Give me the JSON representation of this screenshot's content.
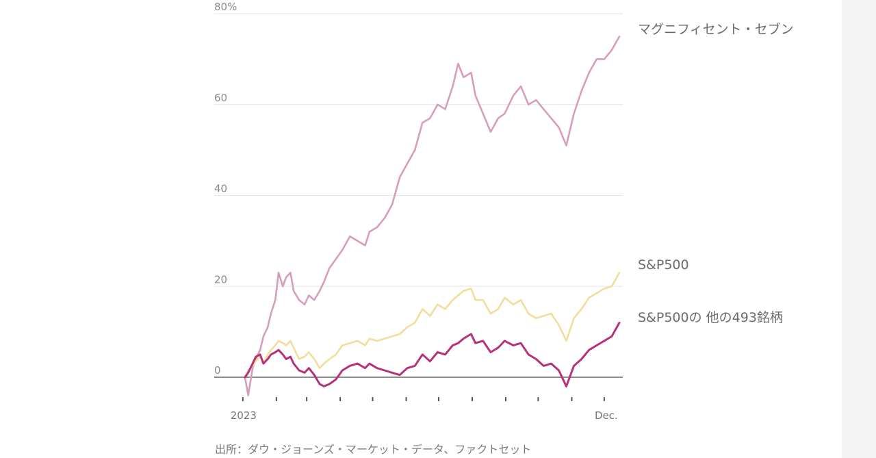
{
  "source": "出所：ダウ・ジョーンズ・マーケット・データ、ファクトセット",
  "chart_data": {
    "type": "line",
    "y_unit": "%",
    "y_ticks": [
      0,
      20,
      40,
      60,
      80
    ],
    "y_tick_labels": [
      "0",
      "20",
      "40",
      "60",
      "80%"
    ],
    "ylim": [
      -4,
      81
    ],
    "x_range": [
      "2023-01-03",
      "2023-12-15"
    ],
    "x_tick_dates": [
      "2023-01-01",
      "2023-02-01",
      "2023-03-01",
      "2023-04-01",
      "2023-05-01",
      "2023-06-01",
      "2023-07-01",
      "2023-08-01",
      "2023-09-01",
      "2023-10-01",
      "2023-11-01",
      "2023-12-01"
    ],
    "x_labels": [
      {
        "date": "2023-01-01",
        "text": "2023"
      },
      {
        "date": "2023-12-01",
        "text": "Dec."
      }
    ],
    "grid": true,
    "legend": "right, inline labels at line ends",
    "series": [
      {
        "name": "マグニフィセント・セブン",
        "color": "#d99dbc",
        "points": [
          [
            "2023-01-03",
            0
          ],
          [
            "2023-01-06",
            -4
          ],
          [
            "2023-01-10",
            2
          ],
          [
            "2023-01-13",
            4
          ],
          [
            "2023-01-17",
            6
          ],
          [
            "2023-01-20",
            9
          ],
          [
            "2023-01-24",
            11
          ],
          [
            "2023-01-27",
            14
          ],
          [
            "2023-01-31",
            17
          ],
          [
            "2023-02-03",
            23
          ],
          [
            "2023-02-07",
            20
          ],
          [
            "2023-02-10",
            22
          ],
          [
            "2023-02-14",
            23
          ],
          [
            "2023-02-17",
            19
          ],
          [
            "2023-02-22",
            17
          ],
          [
            "2023-02-27",
            16
          ],
          [
            "2023-03-03",
            18
          ],
          [
            "2023-03-08",
            17
          ],
          [
            "2023-03-13",
            19
          ],
          [
            "2023-03-17",
            21
          ],
          [
            "2023-03-22",
            24
          ],
          [
            "2023-03-28",
            26
          ],
          [
            "2023-04-03",
            28
          ],
          [
            "2023-04-10",
            31
          ],
          [
            "2023-04-17",
            30
          ],
          [
            "2023-04-24",
            29
          ],
          [
            "2023-04-28",
            32
          ],
          [
            "2023-05-05",
            33
          ],
          [
            "2023-05-12",
            35
          ],
          [
            "2023-05-19",
            38
          ],
          [
            "2023-05-26",
            44
          ],
          [
            "2023-06-02",
            47
          ],
          [
            "2023-06-09",
            50
          ],
          [
            "2023-06-16",
            56
          ],
          [
            "2023-06-23",
            57
          ],
          [
            "2023-06-30",
            60
          ],
          [
            "2023-07-07",
            59
          ],
          [
            "2023-07-14",
            64
          ],
          [
            "2023-07-19",
            69
          ],
          [
            "2023-07-24",
            66
          ],
          [
            "2023-07-31",
            67
          ],
          [
            "2023-08-04",
            62
          ],
          [
            "2023-08-11",
            58
          ],
          [
            "2023-08-18",
            54
          ],
          [
            "2023-08-25",
            57
          ],
          [
            "2023-08-31",
            58
          ],
          [
            "2023-09-08",
            62
          ],
          [
            "2023-09-15",
            64
          ],
          [
            "2023-09-22",
            60
          ],
          [
            "2023-09-29",
            61
          ],
          [
            "2023-10-06",
            59
          ],
          [
            "2023-10-13",
            57
          ],
          [
            "2023-10-20",
            55
          ],
          [
            "2023-10-27",
            51
          ],
          [
            "2023-11-03",
            58
          ],
          [
            "2023-11-10",
            63
          ],
          [
            "2023-11-17",
            67
          ],
          [
            "2023-11-24",
            70
          ],
          [
            "2023-12-01",
            70
          ],
          [
            "2023-12-08",
            72
          ],
          [
            "2023-12-15",
            75
          ]
        ]
      },
      {
        "name": "S&P500",
        "color": "#f3dd9b",
        "points": [
          [
            "2023-01-03",
            0
          ],
          [
            "2023-01-06",
            1.5
          ],
          [
            "2023-01-10",
            2.5
          ],
          [
            "2023-01-13",
            3.5
          ],
          [
            "2023-01-17",
            4.5
          ],
          [
            "2023-01-20",
            3
          ],
          [
            "2023-01-24",
            5
          ],
          [
            "2023-01-27",
            6
          ],
          [
            "2023-01-31",
            7
          ],
          [
            "2023-02-03",
            8
          ],
          [
            "2023-02-07",
            7.5
          ],
          [
            "2023-02-10",
            7
          ],
          [
            "2023-02-14",
            8
          ],
          [
            "2023-02-17",
            6.5
          ],
          [
            "2023-02-22",
            4
          ],
          [
            "2023-02-27",
            4.5
          ],
          [
            "2023-03-03",
            5.5
          ],
          [
            "2023-03-08",
            4
          ],
          [
            "2023-03-13",
            2
          ],
          [
            "2023-03-17",
            3
          ],
          [
            "2023-03-22",
            4
          ],
          [
            "2023-03-28",
            5
          ],
          [
            "2023-04-03",
            7
          ],
          [
            "2023-04-10",
            7.5
          ],
          [
            "2023-04-17",
            8
          ],
          [
            "2023-04-24",
            7
          ],
          [
            "2023-04-28",
            8.5
          ],
          [
            "2023-05-05",
            8
          ],
          [
            "2023-05-12",
            8.5
          ],
          [
            "2023-05-19",
            9
          ],
          [
            "2023-05-26",
            9.5
          ],
          [
            "2023-06-02",
            11
          ],
          [
            "2023-06-09",
            12
          ],
          [
            "2023-06-16",
            15
          ],
          [
            "2023-06-23",
            13.5
          ],
          [
            "2023-06-30",
            16
          ],
          [
            "2023-07-07",
            15
          ],
          [
            "2023-07-14",
            17
          ],
          [
            "2023-07-19",
            18
          ],
          [
            "2023-07-24",
            19
          ],
          [
            "2023-07-31",
            19.5
          ],
          [
            "2023-08-04",
            17
          ],
          [
            "2023-08-11",
            17
          ],
          [
            "2023-08-18",
            14
          ],
          [
            "2023-08-25",
            15
          ],
          [
            "2023-08-31",
            17.5
          ],
          [
            "2023-09-08",
            16
          ],
          [
            "2023-09-15",
            17
          ],
          [
            "2023-09-22",
            14
          ],
          [
            "2023-09-29",
            13
          ],
          [
            "2023-10-06",
            13.5
          ],
          [
            "2023-10-13",
            14
          ],
          [
            "2023-10-20",
            11.5
          ],
          [
            "2023-10-27",
            8
          ],
          [
            "2023-11-03",
            13
          ],
          [
            "2023-11-10",
            15
          ],
          [
            "2023-11-17",
            17.5
          ],
          [
            "2023-11-24",
            18.5
          ],
          [
            "2023-12-01",
            19.5
          ],
          [
            "2023-12-08",
            20
          ],
          [
            "2023-12-15",
            23
          ]
        ]
      },
      {
        "name": "S&P500の 他の493銘柄",
        "color": "#b5327a",
        "points": [
          [
            "2023-01-03",
            0
          ],
          [
            "2023-01-06",
            1
          ],
          [
            "2023-01-10",
            3
          ],
          [
            "2023-01-13",
            4.5
          ],
          [
            "2023-01-17",
            5
          ],
          [
            "2023-01-20",
            3
          ],
          [
            "2023-01-24",
            4
          ],
          [
            "2023-01-27",
            5
          ],
          [
            "2023-01-31",
            5.5
          ],
          [
            "2023-02-03",
            6
          ],
          [
            "2023-02-07",
            5
          ],
          [
            "2023-02-10",
            4
          ],
          [
            "2023-02-14",
            4.5
          ],
          [
            "2023-02-17",
            3
          ],
          [
            "2023-02-22",
            1.5
          ],
          [
            "2023-02-27",
            1
          ],
          [
            "2023-03-03",
            2
          ],
          [
            "2023-03-08",
            0.5
          ],
          [
            "2023-03-13",
            -1.5
          ],
          [
            "2023-03-17",
            -2
          ],
          [
            "2023-03-22",
            -1.5
          ],
          [
            "2023-03-28",
            -0.5
          ],
          [
            "2023-04-03",
            1.5
          ],
          [
            "2023-04-10",
            2.5
          ],
          [
            "2023-04-17",
            3
          ],
          [
            "2023-04-24",
            2
          ],
          [
            "2023-04-28",
            3
          ],
          [
            "2023-05-05",
            2
          ],
          [
            "2023-05-12",
            1.5
          ],
          [
            "2023-05-19",
            1
          ],
          [
            "2023-05-26",
            0.5
          ],
          [
            "2023-06-02",
            2
          ],
          [
            "2023-06-09",
            2.5
          ],
          [
            "2023-06-16",
            5
          ],
          [
            "2023-06-23",
            3.5
          ],
          [
            "2023-06-30",
            5.5
          ],
          [
            "2023-07-07",
            5
          ],
          [
            "2023-07-14",
            7
          ],
          [
            "2023-07-19",
            7.5
          ],
          [
            "2023-07-24",
            8.5
          ],
          [
            "2023-07-31",
            9.5
          ],
          [
            "2023-08-04",
            7.5
          ],
          [
            "2023-08-11",
            8
          ],
          [
            "2023-08-18",
            5.5
          ],
          [
            "2023-08-25",
            6.5
          ],
          [
            "2023-08-31",
            8
          ],
          [
            "2023-09-08",
            7
          ],
          [
            "2023-09-15",
            7.5
          ],
          [
            "2023-09-22",
            5
          ],
          [
            "2023-09-29",
            4
          ],
          [
            "2023-10-06",
            2.5
          ],
          [
            "2023-10-13",
            3
          ],
          [
            "2023-10-20",
            1.5
          ],
          [
            "2023-10-27",
            -2
          ],
          [
            "2023-11-03",
            2.5
          ],
          [
            "2023-11-10",
            4
          ],
          [
            "2023-11-17",
            6
          ],
          [
            "2023-11-24",
            7
          ],
          [
            "2023-12-01",
            8
          ],
          [
            "2023-12-08",
            9
          ],
          [
            "2023-12-15",
            12
          ]
        ]
      }
    ]
  }
}
